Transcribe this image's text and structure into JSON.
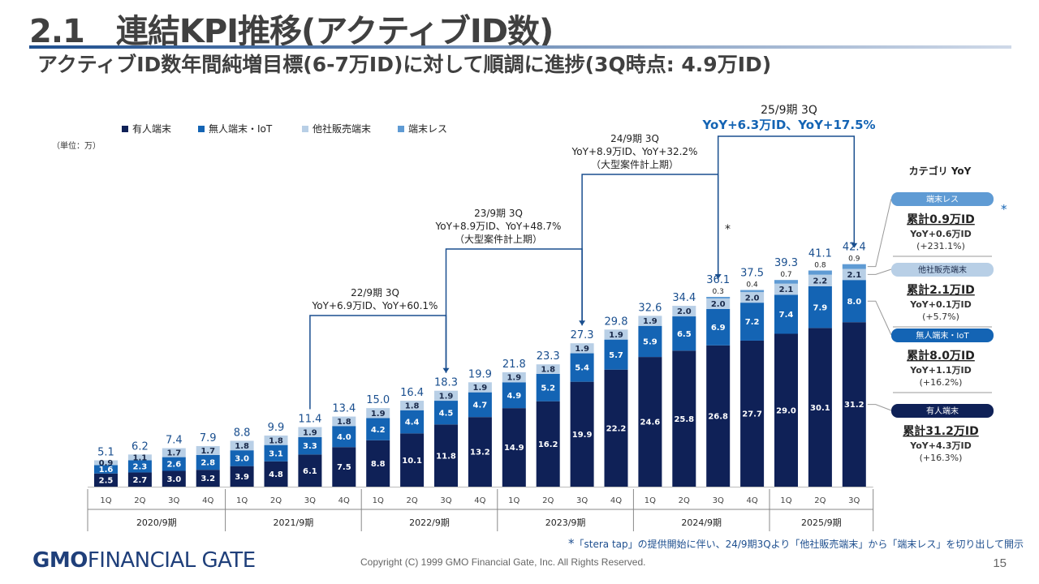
{
  "header": {
    "title": "2.1　連結KPI推移(アクティブID数)",
    "subtitle": "アクティブID数年間純増目標(6-7万ID)に対して順調に進捗(3Q時点: 4.9万ID)"
  },
  "colors": {
    "manned": "#0f2157",
    "unmanned": "#1464b4",
    "other": "#b8cfe6",
    "terminalless": "#5f9bd4",
    "text_blue": "#1a4f8f"
  },
  "chart_data": {
    "type": "bar",
    "stacked": true,
    "unit": "（単位：万）",
    "categories": [
      "1Q",
      "2Q",
      "3Q",
      "4Q",
      "1Q",
      "2Q",
      "3Q",
      "4Q",
      "1Q",
      "2Q",
      "3Q",
      "4Q",
      "1Q",
      "2Q",
      "3Q",
      "4Q",
      "1Q",
      "2Q",
      "3Q",
      "4Q",
      "1Q",
      "2Q",
      "3Q"
    ],
    "groups": [
      {
        "label": "2020/9期",
        "count": 4
      },
      {
        "label": "2021/9期",
        "count": 4
      },
      {
        "label": "2022/9期",
        "count": 4
      },
      {
        "label": "2023/9期",
        "count": 4
      },
      {
        "label": "2024/9期",
        "count": 4
      },
      {
        "label": "2025/9期",
        "count": 3
      }
    ],
    "series": [
      {
        "name": "有人端末",
        "values": [
          2.5,
          2.7,
          3.0,
          3.2,
          3.9,
          4.8,
          6.1,
          7.5,
          8.8,
          10.1,
          11.8,
          13.2,
          14.9,
          16.2,
          19.9,
          22.2,
          24.6,
          25.8,
          26.8,
          27.7,
          29.0,
          30.1,
          31.2
        ]
      },
      {
        "name": "無人端末・IoT",
        "values": [
          1.6,
          2.3,
          2.6,
          2.8,
          3.0,
          3.1,
          3.3,
          4.0,
          4.2,
          4.4,
          4.5,
          4.7,
          4.9,
          5.2,
          5.4,
          5.7,
          5.9,
          6.5,
          6.9,
          7.2,
          7.4,
          7.9,
          8.0
        ]
      },
      {
        "name": "他社販売端末",
        "values": [
          0.9,
          1.1,
          1.7,
          1.7,
          1.8,
          1.8,
          1.9,
          1.8,
          1.9,
          1.8,
          1.9,
          1.9,
          1.9,
          1.8,
          1.9,
          1.9,
          1.9,
          2.0,
          2.0,
          2.0,
          2.1,
          2.2,
          2.1
        ]
      },
      {
        "name": "端末レス",
        "values": [
          null,
          null,
          null,
          null,
          null,
          null,
          null,
          null,
          null,
          null,
          null,
          null,
          null,
          null,
          null,
          null,
          null,
          null,
          0.3,
          0.4,
          0.7,
          0.8,
          0.9
        ]
      }
    ],
    "totals": [
      "5.1",
      "6.2",
      "7.4",
      "7.9",
      "8.8",
      "9.9",
      "11.4",
      "13.4",
      "15.0",
      "16.4",
      "18.3",
      "19.9",
      "21.8",
      "23.3",
      "27.3",
      "29.8",
      "32.6",
      "34.4",
      "36.1",
      "37.5",
      "39.3",
      "41.1",
      "42.4"
    ],
    "ylim": [
      0,
      45
    ],
    "legend_position": "top-left",
    "annotations": [
      {
        "bar": 6,
        "lines": [
          "22/9期 3Q",
          "YoY+6.9万ID、YoY+60.1%"
        ]
      },
      {
        "bar": 10,
        "lines": [
          "23/9期 3Q",
          "YoY+8.9万ID、YoY+48.7%",
          "（大型案件計上期）"
        ]
      },
      {
        "bar": 14,
        "lines": [
          "24/9期 3Q",
          "YoY+8.9万ID、YoY+32.2%",
          "（大型案件計上期）"
        ]
      },
      {
        "bar": 18,
        "lines": [
          "25/9期 3Q",
          "YoY+6.3万ID、YoY+17.5%"
        ]
      }
    ],
    "asterisk": "*"
  },
  "category_panel": {
    "title": "カテゴリ YoY",
    "asterisk": "*",
    "items": [
      {
        "badge": "端末レス",
        "total": "累計0.9万ID",
        "yoy": "YoY+0.6万ID",
        "pct": "(+231.1%)"
      },
      {
        "badge": "他社販売端末",
        "total": "累計2.1万ID",
        "yoy": "YoY+0.1万ID",
        "pct": "(+5.7%)"
      },
      {
        "badge": "無人端末・IoT",
        "total": "累計8.0万ID",
        "yoy": "YoY+1.1万ID",
        "pct": "(+16.2%)"
      },
      {
        "badge": "有人端末",
        "total": "累計31.2万ID",
        "yoy": "YoY+4.3万ID",
        "pct": "(+16.3%)"
      }
    ]
  },
  "footer": {
    "logo_bold": "GMO",
    "logo_rest": "FINANCIAL GATE",
    "copyright": "Copyright (C) 1999 GMO Financial Gate, Inc. All Rights Reserved.",
    "page": "15",
    "footnote_star": "*",
    "footnote": "「stera tap」の提供開始に伴い、24/9期3Qより「他社販売端末」から「端末レス」を切り出して開示"
  }
}
